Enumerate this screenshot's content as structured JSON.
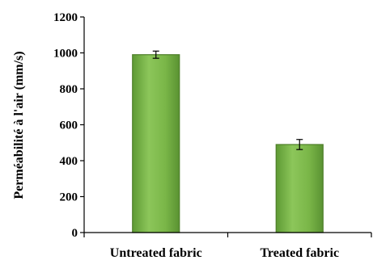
{
  "chart_data": {
    "type": "bar",
    "title": "",
    "xlabel": "",
    "ylabel": "Perméabilité à l'air (mm/s)",
    "categories": [
      "Untreated fabric",
      "Treated fabric"
    ],
    "values": [
      990,
      490
    ],
    "errors": [
      20,
      28
    ],
    "ylim": [
      0,
      1200
    ],
    "yticks": [
      0,
      200,
      400,
      600,
      800,
      1000,
      1200
    ],
    "grid": false,
    "legend": "none",
    "colors": {
      "bar_fill": "#7ab648",
      "bar_stroke": "#4f7f2a",
      "axis": "#000000"
    }
  }
}
